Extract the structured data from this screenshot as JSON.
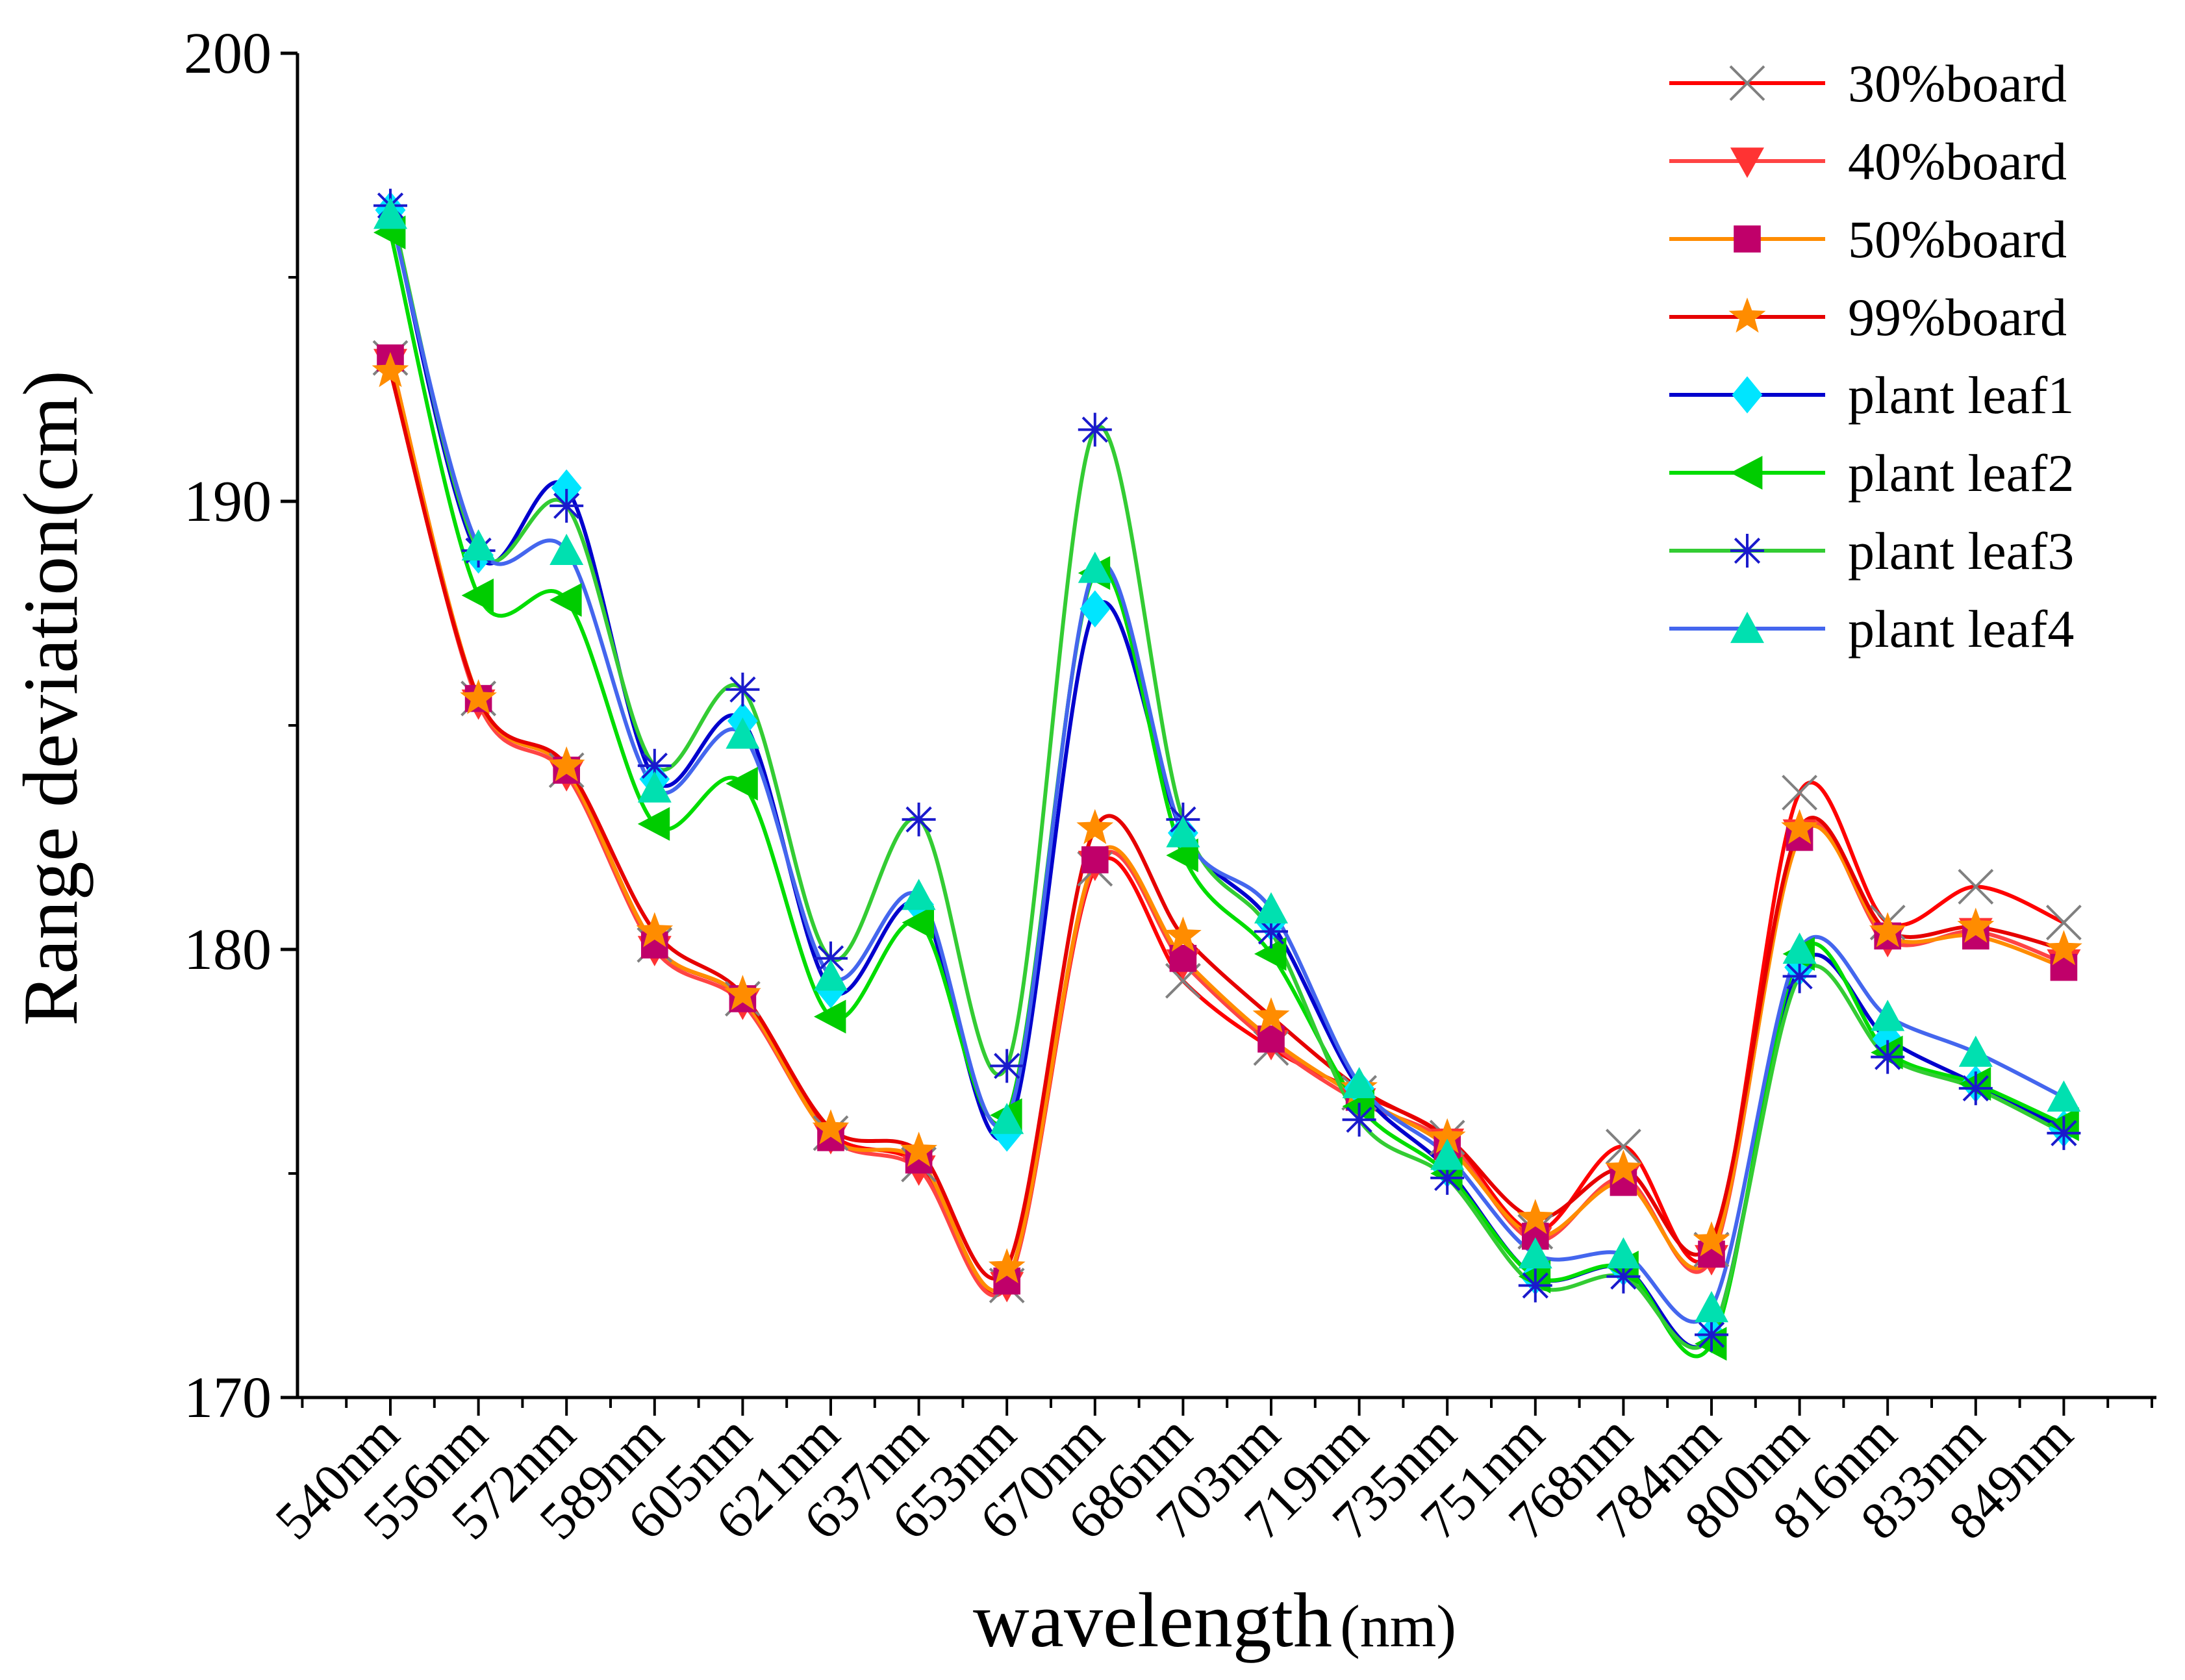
{
  "chart_data": {
    "type": "line",
    "title": "",
    "xlabel": "wavelength",
    "xlabel_unit": "(nm)",
    "ylabel": "Range deviation(cm)",
    "ylim": [
      170,
      200
    ],
    "yticks": [
      170,
      180,
      190,
      200
    ],
    "grid": false,
    "legend_position": "top-right",
    "categories": [
      "540nm",
      "556nm",
      "572nm",
      "589nm",
      "605nm",
      "621nm",
      "637nm",
      "653nm",
      "670nm",
      "686nm",
      "703nm",
      "719nm",
      "735nm",
      "751nm",
      "768nm",
      "784nm",
      "800nm",
      "816nm",
      "833nm",
      "849nm"
    ],
    "series": [
      {
        "name": "30%board",
        "color": "#ff0000",
        "marker": "cross",
        "marker_color": "#808080",
        "values": [
          193.2,
          185.6,
          184.0,
          180.1,
          178.9,
          175.9,
          175.2,
          172.5,
          181.8,
          179.3,
          177.8,
          176.8,
          175.8,
          173.7,
          175.6,
          173.3,
          183.5,
          180.6,
          181.4,
          180.6
        ]
      },
      {
        "name": "40%board",
        "color": "#ff4444",
        "marker": "triangle-down",
        "marker_color": "#ff3333",
        "values": [
          193.1,
          185.5,
          183.9,
          180.0,
          178.8,
          175.8,
          175.1,
          172.5,
          181.9,
          179.7,
          177.9,
          176.6,
          175.7,
          173.5,
          174.9,
          173.1,
          182.6,
          180.2,
          180.4,
          179.7
        ]
      },
      {
        "name": "50%board",
        "color": "#ff8c00",
        "marker": "square",
        "marker_color": "#c0006a",
        "values": [
          193.2,
          185.6,
          184.0,
          180.1,
          178.9,
          175.8,
          175.3,
          172.6,
          182.0,
          179.8,
          178.0,
          176.7,
          175.6,
          173.6,
          174.8,
          173.2,
          182.5,
          180.3,
          180.3,
          179.6
        ]
      },
      {
        "name": "99%board",
        "color": "#e60000",
        "marker": "star",
        "marker_color": "#ff8c00",
        "values": [
          192.9,
          185.6,
          184.1,
          180.4,
          179.0,
          176.0,
          175.5,
          172.9,
          182.7,
          180.3,
          178.5,
          176.9,
          175.8,
          174.0,
          175.1,
          173.5,
          182.7,
          180.4,
          180.5,
          180.0
        ]
      },
      {
        "name": "plant leaf1",
        "color": "#0000cd",
        "marker": "diamond",
        "marker_color": "#00e5ff",
        "values": [
          196.5,
          188.8,
          190.3,
          183.8,
          185.1,
          179.1,
          181.0,
          175.9,
          187.6,
          182.6,
          180.6,
          176.9,
          175.1,
          172.7,
          172.9,
          171.4,
          179.6,
          178.0,
          177.0,
          176.0
        ]
      },
      {
        "name": "plant leaf2",
        "color": "#00dd00",
        "marker": "triangle-left",
        "marker_color": "#00cc00",
        "values": [
          196.0,
          187.9,
          187.8,
          182.8,
          183.7,
          178.5,
          180.6,
          176.3,
          188.4,
          182.1,
          179.9,
          176.5,
          175.0,
          172.7,
          172.9,
          171.2,
          179.9,
          177.7,
          177.0,
          176.1
        ]
      },
      {
        "name": "plant leaf3",
        "color": "#33cc33",
        "marker": "asterisk",
        "marker_color": "#1a1acc",
        "values": [
          196.6,
          188.9,
          189.9,
          184.1,
          185.8,
          179.8,
          182.9,
          177.4,
          191.6,
          182.9,
          180.4,
          176.2,
          174.9,
          172.5,
          172.7,
          171.4,
          179.4,
          177.6,
          176.9,
          175.9
        ]
      },
      {
        "name": "plant leaf4",
        "color": "#4466ee",
        "marker": "triangle-up",
        "marker_color": "#00e0b0",
        "values": [
          196.4,
          189.0,
          188.9,
          183.6,
          184.8,
          179.4,
          181.2,
          176.2,
          188.5,
          182.6,
          180.9,
          177.0,
          175.4,
          173.2,
          173.2,
          172.0,
          180.0,
          178.5,
          177.7,
          176.7
        ]
      }
    ]
  }
}
